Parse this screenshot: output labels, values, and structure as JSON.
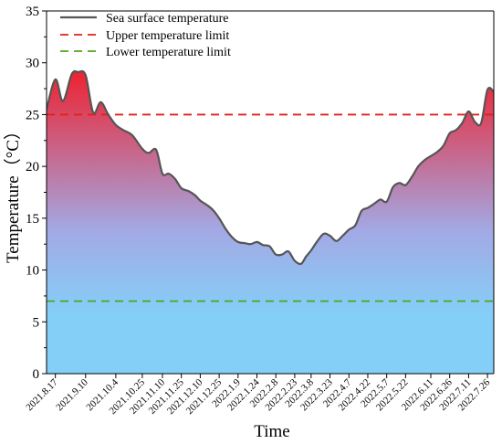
{
  "chart_data": {
    "type": "area",
    "title": "",
    "xlabel": "Time",
    "ylabel": "Temperature（°C）",
    "ylim": [
      0,
      35
    ],
    "yticks": [
      "0",
      "5",
      "10",
      "15",
      "20",
      "25",
      "30",
      "35"
    ],
    "grid": false,
    "legend_position": "top-left",
    "x_tick_labels": [
      "2021.8.17",
      "2021.9.10",
      "2021.10.4",
      "2021.10.25",
      "2021.11.10",
      "2021.11.25",
      "2021.12.10",
      "2021.12.25",
      "2022.1.9",
      "2022.1.24",
      "2022.2.8",
      "2022.2.23",
      "2022.3.8",
      "2022.3.23",
      "2022.4.7",
      "2022.4.22",
      "2022.5.7",
      "2022.5.22",
      "2022.6.11",
      "2022.6.26",
      "2022.7.11",
      "2022.7.26"
    ],
    "series": [
      {
        "name": "Sea surface temperature",
        "color": "#555555",
        "x": [
          "2021.8.10",
          "2021.8.17",
          "2021.8.23",
          "2021.8.30",
          "2021.9.4",
          "2021.9.10",
          "2021.9.16",
          "2021.9.22",
          "2021.9.28",
          "2021.10.4",
          "2021.10.10",
          "2021.10.17",
          "2021.10.25",
          "2021.10.30",
          "2021.11.5",
          "2021.11.10",
          "2021.11.15",
          "2021.11.20",
          "2021.11.25",
          "2021.12.1",
          "2021.12.6",
          "2021.12.10",
          "2021.12.15",
          "2021.12.20",
          "2021.12.25",
          "2021.12.30",
          "2022.1.4",
          "2022.1.9",
          "2022.1.14",
          "2022.1.19",
          "2022.1.24",
          "2022.1.29",
          "2022.2.3",
          "2022.2.8",
          "2022.2.13",
          "2022.2.18",
          "2022.2.23",
          "2022.2.28",
          "2022.3.4",
          "2022.3.8",
          "2022.3.13",
          "2022.3.18",
          "2022.3.23",
          "2022.3.28",
          "2022.4.2",
          "2022.4.7",
          "2022.4.12",
          "2022.4.17",
          "2022.4.22",
          "2022.4.27",
          "2022.5.2",
          "2022.5.7",
          "2022.5.12",
          "2022.5.17",
          "2022.5.22",
          "2022.5.27",
          "2022.6.1",
          "2022.6.6",
          "2022.6.11",
          "2022.6.16",
          "2022.6.21",
          "2022.6.26",
          "2022.7.1",
          "2022.7.6",
          "2022.7.11",
          "2022.7.16",
          "2022.7.21",
          "2022.7.26",
          "2022.7.31"
        ],
        "values": [
          25.5,
          28.4,
          26.3,
          28.9,
          29.1,
          28.8,
          25.2,
          26.2,
          25.0,
          24.0,
          23.5,
          23.0,
          21.7,
          21.3,
          21.6,
          19.3,
          19.3,
          18.8,
          17.9,
          17.6,
          17.2,
          16.7,
          16.3,
          15.8,
          15.0,
          14.0,
          13.2,
          12.7,
          12.6,
          12.5,
          12.7,
          12.4,
          12.3,
          11.5,
          11.5,
          11.8,
          10.9,
          10.6,
          11.3,
          11.9,
          12.8,
          13.5,
          13.3,
          12.8,
          13.3,
          13.9,
          14.3,
          15.7,
          16.0,
          16.4,
          16.8,
          16.6,
          18.0,
          18.4,
          18.2,
          19.0,
          20.0,
          20.6,
          21.0,
          21.4,
          22.0,
          23.2,
          23.5,
          24.2,
          25.3,
          24.3,
          24.2,
          27.4,
          27.2
        ]
      },
      {
        "name": "Upper temperature limit",
        "color": "#e0221a",
        "dashed": true,
        "constant": 25
      },
      {
        "name": "Lower temperature limit",
        "color": "#4fa51c",
        "dashed": true,
        "constant": 7
      }
    ],
    "fill_gradient": [
      "#f5141e",
      "#a3a9e4",
      "#84cff8"
    ]
  }
}
